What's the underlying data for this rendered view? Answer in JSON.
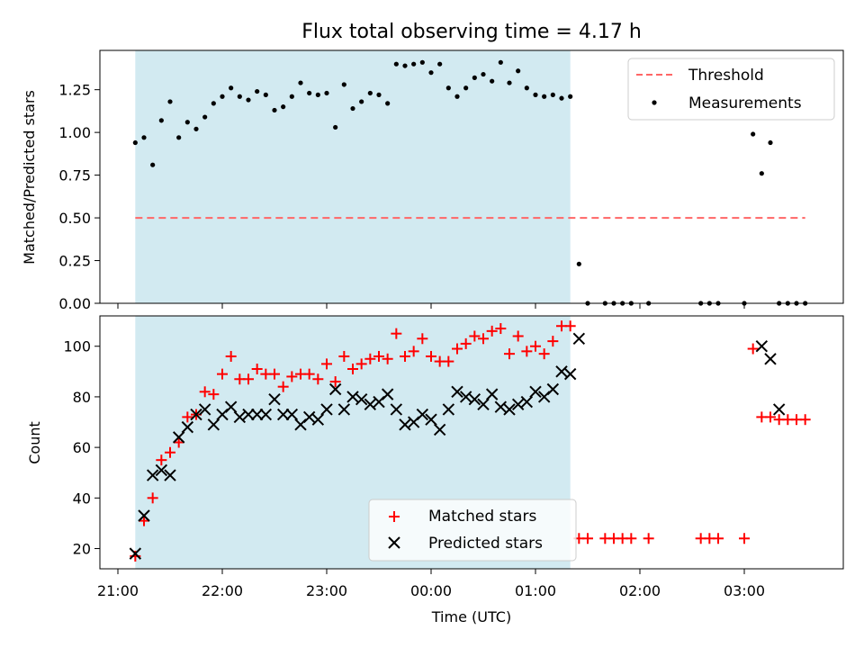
{
  "title": "Flux total observing time = 4.17 h",
  "chart_data": [
    {
      "type": "scatter",
      "panel": "top",
      "title": "Flux total observing time = 4.17 h",
      "xlabel": "",
      "ylabel": "Matched/Predicted stars",
      "ylim": [
        0,
        1.48
      ],
      "y_ticks": [
        "0.00",
        "0.25",
        "0.50",
        "0.75",
        "1.00",
        "1.25"
      ],
      "y_tick_values": [
        0,
        0.25,
        0.5,
        0.75,
        1.0,
        1.25
      ],
      "shaded_region": {
        "x_start": "21:10",
        "x_end": "01:20",
        "color": "#add8e6"
      },
      "legend_position": "upper right",
      "threshold": {
        "name": "Threshold",
        "value": 0.5,
        "x_start": "21:10",
        "x_end": "03:35",
        "color": "#ff6666",
        "style": "dashed"
      },
      "series": [
        {
          "name": "Measurements",
          "color": "#000000",
          "marker": "dot",
          "x": [
            "21:10",
            "21:15",
            "21:20",
            "21:25",
            "21:30",
            "21:35",
            "21:40",
            "21:45",
            "21:50",
            "21:55",
            "22:00",
            "22:05",
            "22:10",
            "22:15",
            "22:20",
            "22:25",
            "22:30",
            "22:35",
            "22:40",
            "22:45",
            "22:50",
            "22:55",
            "23:00",
            "23:05",
            "23:10",
            "23:15",
            "23:20",
            "23:25",
            "23:30",
            "23:35",
            "23:40",
            "23:45",
            "23:50",
            "23:55",
            "00:00",
            "00:05",
            "00:10",
            "00:15",
            "00:20",
            "00:25",
            "00:30",
            "00:35",
            "00:40",
            "00:45",
            "00:50",
            "00:55",
            "01:00",
            "01:05",
            "01:10",
            "01:15",
            "01:20",
            "01:25",
            "01:30",
            "01:40",
            "01:45",
            "01:50",
            "01:55",
            "02:05",
            "02:35",
            "02:40",
            "02:45",
            "03:00",
            "03:05",
            "03:10",
            "03:15",
            "03:20",
            "03:25",
            "03:30",
            "03:35"
          ],
          "y": [
            0.94,
            0.97,
            0.81,
            1.07,
            1.18,
            0.97,
            1.06,
            1.02,
            1.09,
            1.17,
            1.21,
            1.26,
            1.21,
            1.19,
            1.24,
            1.22,
            1.13,
            1.15,
            1.21,
            1.29,
            1.23,
            1.22,
            1.23,
            1.03,
            1.28,
            1.14,
            1.18,
            1.23,
            1.22,
            1.17,
            1.4,
            1.39,
            1.4,
            1.41,
            1.35,
            1.4,
            1.26,
            1.21,
            1.26,
            1.32,
            1.34,
            1.3,
            1.41,
            1.29,
            1.36,
            1.26,
            1.22,
            1.21,
            1.22,
            1.2,
            1.21,
            0.23,
            0.0,
            0.0,
            0.0,
            0.0,
            0.0,
            0.0,
            0.0,
            0.0,
            0.0,
            0.0,
            0.99,
            0.76,
            0.94,
            0.0,
            0.0,
            0.0,
            0.0
          ]
        }
      ]
    },
    {
      "type": "scatter",
      "panel": "bottom",
      "title": "",
      "xlabel": "Time (UTC)",
      "ylabel": "Count",
      "ylim": [
        12,
        112
      ],
      "y_ticks": [
        "20",
        "40",
        "60",
        "80",
        "100"
      ],
      "y_tick_values": [
        20,
        40,
        60,
        80,
        100
      ],
      "x_ticks": [
        "21:00",
        "22:00",
        "23:00",
        "00:00",
        "01:00",
        "02:00",
        "03:00"
      ],
      "shaded_region": {
        "x_start": "21:10",
        "x_end": "01:20",
        "color": "#add8e6"
      },
      "legend_position": "lower center",
      "series": [
        {
          "name": "Matched stars",
          "color": "#ff0000",
          "marker": "plus",
          "x": [
            "21:10",
            "21:15",
            "21:20",
            "21:25",
            "21:30",
            "21:35",
            "21:40",
            "21:45",
            "21:50",
            "21:55",
            "22:00",
            "22:05",
            "22:10",
            "22:15",
            "22:20",
            "22:25",
            "22:30",
            "22:35",
            "22:40",
            "22:45",
            "22:50",
            "22:55",
            "23:00",
            "23:05",
            "23:10",
            "23:15",
            "23:20",
            "23:25",
            "23:30",
            "23:35",
            "23:40",
            "23:45",
            "23:50",
            "23:55",
            "00:00",
            "00:05",
            "00:10",
            "00:15",
            "00:20",
            "00:25",
            "00:30",
            "00:35",
            "00:40",
            "00:45",
            "00:50",
            "00:55",
            "01:00",
            "01:05",
            "01:10",
            "01:15",
            "01:20",
            "01:25",
            "01:30",
            "01:40",
            "01:45",
            "01:50",
            "01:55",
            "02:05",
            "02:35",
            "02:40",
            "02:45",
            "03:00",
            "03:05",
            "03:10",
            "03:15",
            "03:20",
            "03:25",
            "03:30",
            "03:35"
          ],
          "y": [
            17,
            31,
            40,
            55,
            58,
            62,
            72,
            73,
            82,
            81,
            89,
            96,
            87,
            87,
            91,
            89,
            89,
            84,
            88,
            89,
            89,
            87,
            93,
            86,
            96,
            91,
            93,
            95,
            96,
            95,
            105,
            96,
            98,
            103,
            96,
            94,
            94,
            99,
            101,
            104,
            103,
            106,
            107,
            97,
            104,
            98,
            100,
            97,
            102,
            108,
            108,
            24,
            24,
            24,
            24,
            24,
            24,
            24,
            24,
            24,
            24,
            24,
            99,
            72,
            72,
            71,
            71,
            71,
            71
          ]
        },
        {
          "name": "Predicted stars",
          "color": "#000000",
          "marker": "x",
          "x": [
            "21:10",
            "21:15",
            "21:20",
            "21:25",
            "21:30",
            "21:35",
            "21:40",
            "21:45",
            "21:50",
            "21:55",
            "22:00",
            "22:05",
            "22:10",
            "22:15",
            "22:20",
            "22:25",
            "22:30",
            "22:35",
            "22:40",
            "22:45",
            "22:50",
            "22:55",
            "23:00",
            "23:05",
            "23:10",
            "23:15",
            "23:20",
            "23:25",
            "23:30",
            "23:35",
            "23:40",
            "23:45",
            "23:50",
            "23:55",
            "00:00",
            "00:05",
            "00:10",
            "00:15",
            "00:20",
            "00:25",
            "00:30",
            "00:35",
            "00:40",
            "00:45",
            "00:50",
            "00:55",
            "01:00",
            "01:05",
            "01:10",
            "01:15",
            "01:20",
            "01:25",
            "03:10",
            "03:15",
            "03:20"
          ],
          "y": [
            18,
            33,
            49,
            51,
            49,
            64,
            68,
            73,
            75,
            69,
            73,
            76,
            72,
            73,
            73,
            73,
            79,
            73,
            73,
            69,
            72,
            71,
            75,
            83,
            75,
            80,
            79,
            77,
            78,
            81,
            75,
            69,
            70,
            73,
            71,
            67,
            75,
            82,
            80,
            79,
            77,
            81,
            76,
            75,
            77,
            78,
            82,
            80,
            83,
            90,
            89,
            103,
            100,
            95,
            75
          ]
        }
      ]
    }
  ]
}
